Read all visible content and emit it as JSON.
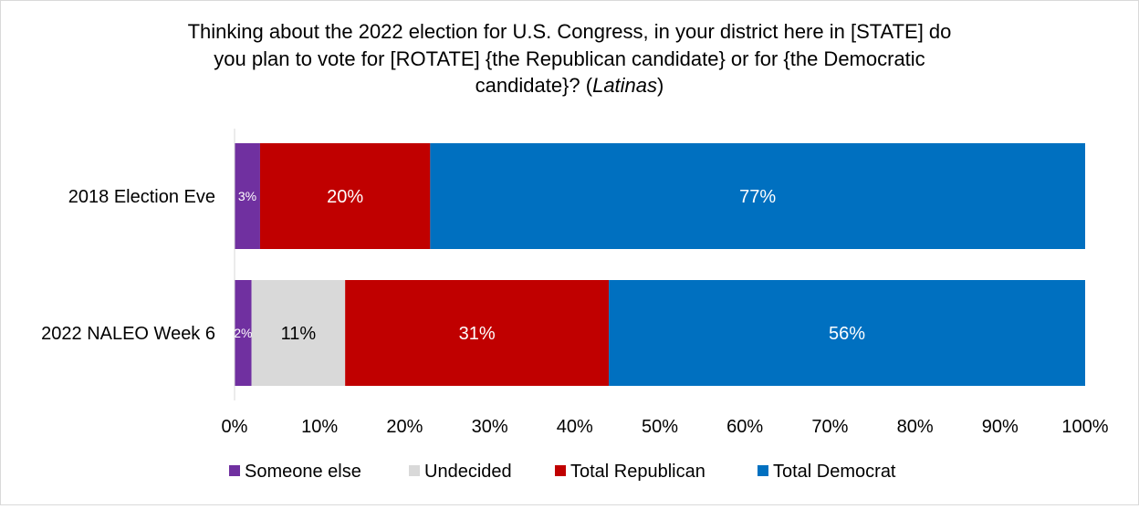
{
  "chart_data": {
    "type": "bar",
    "orientation": "horizontal",
    "stacked": true,
    "title_lines": [
      "Thinking about the 2022 election for U.S. Congress, in your district here in [STATE] do",
      "you plan to vote for [ROTATE] {the Republican candidate} or for {the Democratic",
      "candidate}? (",
      "Latinas",
      ")"
    ],
    "categories": [
      "2018 Election Eve",
      "2022 NALEO Week 6"
    ],
    "series": [
      {
        "name": "Someone else",
        "color": "#7030a0",
        "values": [
          3,
          2
        ],
        "labels": [
          "3%",
          "2%"
        ],
        "label_color": "#ffffff"
      },
      {
        "name": "Undecided",
        "color": "#d9d9d9",
        "values": [
          0,
          11
        ],
        "labels": [
          "",
          "11%"
        ],
        "label_color": "#000000"
      },
      {
        "name": "Total Republican",
        "color": "#c00000",
        "values": [
          20,
          31
        ],
        "labels": [
          "20%",
          "31%"
        ],
        "label_color": "#ffffff"
      },
      {
        "name": "Total Democrat",
        "color": "#0070c0",
        "values": [
          77,
          56
        ],
        "labels": [
          "77%",
          "56%"
        ],
        "label_color": "#ffffff"
      }
    ],
    "xlim": [
      0,
      100
    ],
    "xticks": [
      "0%",
      "10%",
      "20%",
      "30%",
      "40%",
      "50%",
      "60%",
      "70%",
      "80%",
      "90%",
      "100%"
    ],
    "grid": false,
    "legend_position": "bottom"
  }
}
